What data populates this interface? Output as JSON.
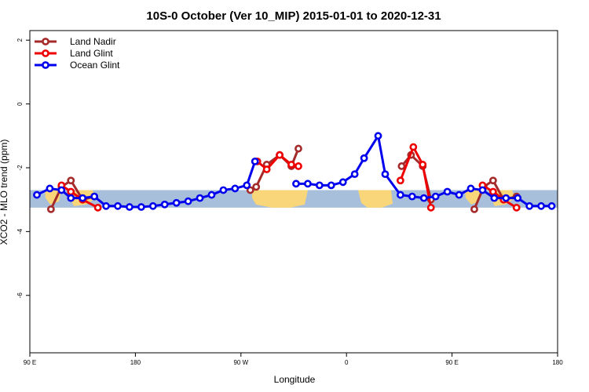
{
  "chart_data": {
    "type": "line",
    "title": "10S-0 October (Ver 10_MIP)   2015-01-01 to 2020-12-31",
    "xlabel": "Longitude",
    "ylabel": "XCO2 - MLO trend (ppm)",
    "xlim": [
      90,
      540
    ],
    "ylim": [
      -7.8,
      2.3
    ],
    "xticks": [
      {
        "value": 90,
        "label": "90 E"
      },
      {
        "value": 180,
        "label": "180"
      },
      {
        "value": 270,
        "label": "90 W"
      },
      {
        "value": 360,
        "label": "0"
      },
      {
        "value": 450,
        "label": "90 E"
      },
      {
        "value": 540,
        "label": "180"
      }
    ],
    "yticks": [
      {
        "value": 2,
        "label": "2"
      },
      {
        "value": 0,
        "label": "0"
      },
      {
        "value": -2,
        "label": "-2"
      },
      {
        "value": -4,
        "label": "-4"
      },
      {
        "value": -6,
        "label": "-6"
      }
    ],
    "legend_position": "top-left",
    "band": {
      "y_min": -3.25,
      "y_max": -2.7,
      "color": "#a8bfdc",
      "land_color": "#f8d679"
    },
    "series": [
      {
        "name": "Land Nadir",
        "color": "#a52a2a",
        "segments": [
          [
            [
              108,
              -3.3
            ],
            [
              117,
              -2.6
            ],
            [
              125,
              -2.4
            ],
            [
              135,
              -3.0
            ],
            [
              145,
              -2.9
            ]
          ],
          [
            [
              278,
              -2.7
            ],
            [
              283,
              -2.6
            ],
            [
              292,
              -1.9
            ],
            [
              303,
              -1.6
            ],
            [
              313,
              -1.95
            ],
            [
              319,
              -1.4
            ]
          ],
          [
            [
              407,
              -1.95
            ],
            [
              415,
              -1.6
            ],
            [
              425,
              -1.95
            ],
            [
              432,
              -3.0
            ]
          ],
          [
            [
              469,
              -3.3
            ],
            [
              477,
              -2.6
            ],
            [
              485,
              -2.4
            ],
            [
              494,
              -3.0
            ],
            [
              505,
              -2.9
            ]
          ]
        ]
      },
      {
        "name": "Land Glint",
        "color": "#ee0000",
        "segments": [
          [
            [
              117,
              -2.55
            ],
            [
              125,
              -2.75
            ],
            [
              135,
              -3.0
            ],
            [
              148,
              -3.25
            ]
          ],
          [
            [
              284,
              -1.8
            ],
            [
              292,
              -2.05
            ],
            [
              303,
              -1.6
            ],
            [
              313,
              -1.9
            ],
            [
              319,
              -1.95
            ]
          ],
          [
            [
              406,
              -2.4
            ],
            [
              417,
              -1.35
            ],
            [
              425,
              -1.9
            ],
            [
              432,
              -3.25
            ]
          ],
          [
            [
              476,
              -2.55
            ],
            [
              485,
              -2.75
            ],
            [
              494,
              -3.0
            ],
            [
              505,
              -3.25
            ]
          ]
        ]
      },
      {
        "name": "Ocean Glint",
        "color": "#0000ee",
        "segments": [
          [
            [
              96,
              -2.85
            ],
            [
              107,
              -2.65
            ],
            [
              117,
              -2.7
            ],
            [
              125,
              -2.95
            ],
            [
              135,
              -2.95
            ],
            [
              145,
              -2.9
            ],
            [
              155,
              -3.2
            ],
            [
              165,
              -3.2
            ],
            [
              175,
              -3.23
            ],
            [
              185,
              -3.23
            ],
            [
              195,
              -3.2
            ],
            [
              205,
              -3.15
            ],
            [
              215,
              -3.1
            ],
            [
              225,
              -3.05
            ],
            [
              235,
              -2.95
            ],
            [
              245,
              -2.85
            ],
            [
              255,
              -2.7
            ],
            [
              265,
              -2.65
            ],
            [
              275,
              -2.55
            ],
            [
              282,
              -1.8
            ]
          ],
          [
            [
              317,
              -2.5
            ],
            [
              327,
              -2.5
            ],
            [
              337,
              -2.55
            ],
            [
              347,
              -2.55
            ],
            [
              357,
              -2.45
            ],
            [
              367,
              -2.2
            ],
            [
              375,
              -1.7
            ],
            [
              387,
              -1.0
            ],
            [
              393,
              -2.2
            ],
            [
              406,
              -2.85
            ],
            [
              416,
              -2.9
            ],
            [
              426,
              -2.95
            ],
            [
              436,
              -2.9
            ],
            [
              446,
              -2.75
            ],
            [
              456,
              -2.85
            ],
            [
              466,
              -2.65
            ],
            [
              476,
              -2.7
            ],
            [
              486,
              -2.95
            ],
            [
              496,
              -2.95
            ],
            [
              506,
              -2.95
            ],
            [
              516,
              -3.2
            ],
            [
              526,
              -3.2
            ],
            [
              535,
              -3.2
            ]
          ]
        ]
      }
    ]
  }
}
